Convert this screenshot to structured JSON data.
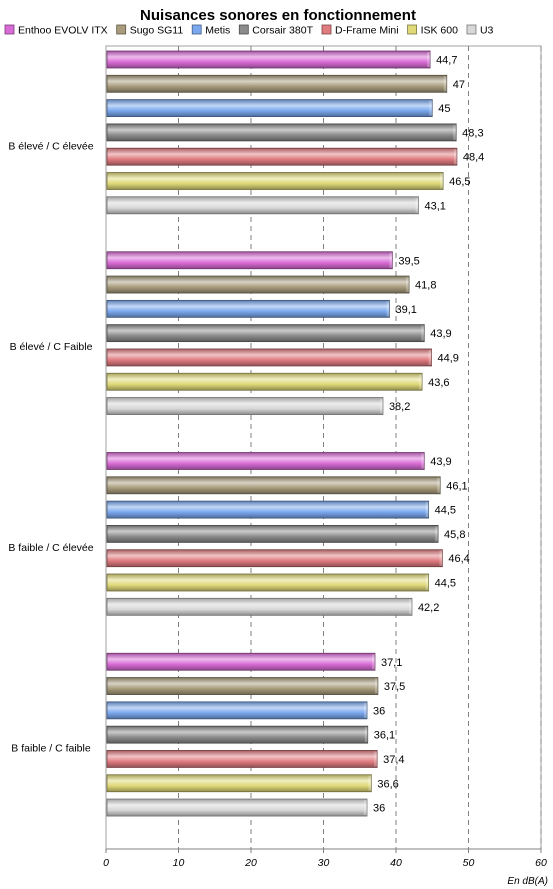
{
  "chart_data": {
    "type": "bar",
    "orientation": "horizontal",
    "title": "Nuisances sonores en fonctionnement",
    "xlabel": "En dB(A)",
    "ylabel": "",
    "xlim": [
      0,
      60
    ],
    "xticks": [
      0,
      10,
      20,
      30,
      40,
      50,
      60
    ],
    "grid": "vertical-dashed",
    "legend_position": "top",
    "categories": [
      "B élevé / C élevée",
      "B élevé / C Faible",
      "B faible / C élevée",
      "B faible / C faible"
    ],
    "series": [
      {
        "name": "Enthoo EVOLV ITX",
        "color": "#d96bd6",
        "values": [
          44.7,
          39.5,
          43.9,
          37.1
        ],
        "labels": [
          "44,7",
          "39,5",
          "43,9",
          "37,1"
        ]
      },
      {
        "name": "Sugo SG11",
        "color": "#a89c7c",
        "values": [
          47,
          41.8,
          46.1,
          37.5
        ],
        "labels": [
          "47",
          "41,8",
          "46,1",
          "37,5"
        ]
      },
      {
        "name": "Metis",
        "color": "#7aa8ee",
        "values": [
          45,
          39.1,
          44.5,
          36
        ],
        "labels": [
          "45",
          "39,1",
          "44,5",
          "36"
        ]
      },
      {
        "name": "Corsair 380T",
        "color": "#8c8c8c",
        "values": [
          48.3,
          43.9,
          45.8,
          36.1
        ],
        "labels": [
          "48,3",
          "43,9",
          "45,8",
          "36,1"
        ]
      },
      {
        "name": "D-Frame Mini",
        "color": "#e07b80",
        "values": [
          48.4,
          44.9,
          46.4,
          37.4
        ],
        "labels": [
          "48,4",
          "44,9",
          "46,4",
          "37,4"
        ]
      },
      {
        "name": "ISK 600",
        "color": "#dfd978",
        "values": [
          46.5,
          43.6,
          44.5,
          36.6
        ],
        "labels": [
          "46,5",
          "43,6",
          "44,5",
          "36,6"
        ]
      },
      {
        "name": "U3",
        "color": "#d8d8d8",
        "values": [
          43.1,
          38.2,
          42.2,
          36
        ],
        "labels": [
          "43,1",
          "38,2",
          "42,2",
          "36"
        ]
      }
    ]
  }
}
